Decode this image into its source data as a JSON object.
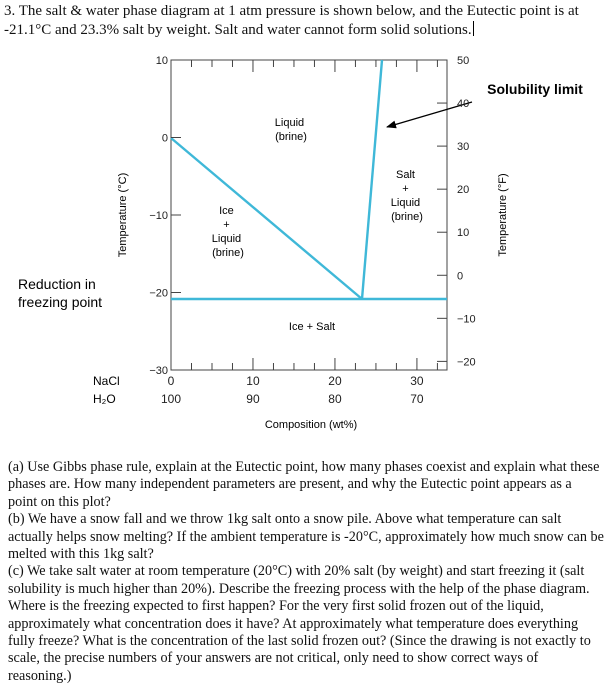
{
  "problem": {
    "intro": "3. The salt & water phase diagram at 1 atm pressure is shown below, and the Eutectic point is at -21.1°C and 23.3% salt by weight. Salt and water cannot form solid solutions.",
    "parts": [
      "(a) Use Gibbs phase rule, explain at the Eutectic point, how many phases coexist and explain what these phases are. How many independent parameters are present, and why the Eutectic point appears as a point on this plot?",
      "(b) We have a snow fall and we throw 1kg salt onto a snow pile. Above what temperature can salt actually helps snow melting? If the ambient temperature is -20°C, approximately how much snow can be melted with this 1kg salt?",
      "(c) We take salt water at room temperature (20°C) with 20% salt (by weight) and start freezing it (salt solubility is much higher than 20%). Describe the freezing process with the help of the phase diagram. Where is the freezing expected to first happen? For the very first solid frozen out of the liquid, approximately what concentration does it have? At approximately what temperature does everything fully freeze? What is the concentration of the last solid frozen out? (Since the drawing is not exactly to scale, the precise numbers of your answers are not critical, only need to show correct ways of reasoning.)"
    ]
  },
  "diagram": {
    "line_color": "#3fb8d8",
    "left_axis_label": "Temperature (°C)",
    "right_axis_label": "Temperature (°F)",
    "x_axis_label": "Composition (wt%)",
    "row_nacl_label": "NaCl",
    "row_h2o_label": "H₂O",
    "celsius_ticks": [
      {
        "label": "10",
        "value": 10
      },
      {
        "label": "0",
        "value": 0
      },
      {
        "label": "−10",
        "value": -10
      },
      {
        "label": "−20",
        "value": -20
      },
      {
        "label": "−30",
        "value": -30
      }
    ],
    "fahrenheit_ticks": [
      {
        "label": "50",
        "value": 50
      },
      {
        "label": "40",
        "value": 40
      },
      {
        "label": "30",
        "value": 30
      },
      {
        "label": "20",
        "value": 20
      },
      {
        "label": "10",
        "value": 10
      },
      {
        "label": "0",
        "value": 0
      },
      {
        "label": "−10",
        "value": -10
      },
      {
        "label": "−20",
        "value": -20
      }
    ],
    "composition_ticks": [
      {
        "nacl": "0",
        "h2o": "100",
        "value": 0
      },
      {
        "nacl": "10",
        "h2o": "90",
        "value": 10
      },
      {
        "nacl": "20",
        "h2o": "80",
        "value": 20
      },
      {
        "nacl": "30",
        "h2o": "70",
        "value": 30
      }
    ],
    "regions": {
      "liquid": [
        "Liquid",
        "(brine)"
      ],
      "ice_liquid": [
        "Ice",
        "+",
        "Liquid",
        "(brine)"
      ],
      "salt_liquid": [
        "Salt",
        "+",
        "Liquid",
        "(brine)"
      ],
      "ice_salt": "Ice + Salt"
    },
    "annotations": {
      "solubility_limit": "Solubility limit",
      "reduction_line1": "Reduction in",
      "reduction_line2": "freezing point"
    }
  }
}
